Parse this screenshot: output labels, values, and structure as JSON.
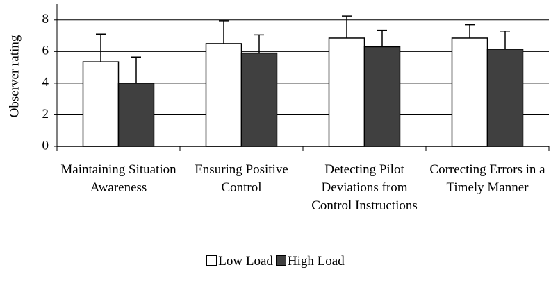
{
  "chart_data": {
    "type": "bar",
    "y_label": "Observer rating",
    "categories": [
      "Maintaining Situation Awareness",
      "Ensuring Positive Control",
      "Detecting Pilot Deviations from Control Instructions",
      "Correcting Errors in a Timely Manner"
    ],
    "series": [
      {
        "name": "Low Load",
        "color": "#ffffff",
        "values": [
          5.35,
          6.5,
          6.85,
          6.85
        ],
        "errors": [
          1.75,
          1.45,
          1.4,
          0.85
        ]
      },
      {
        "name": "High Load",
        "color": "#404040",
        "values": [
          4.0,
          5.9,
          6.3,
          6.15
        ],
        "errors": [
          1.65,
          1.15,
          1.05,
          1.15
        ]
      }
    ],
    "ylim": [
      0,
      9
    ],
    "yticks": [
      0,
      2,
      4,
      6,
      8
    ],
    "grid": true,
    "legend": "bottom"
  }
}
